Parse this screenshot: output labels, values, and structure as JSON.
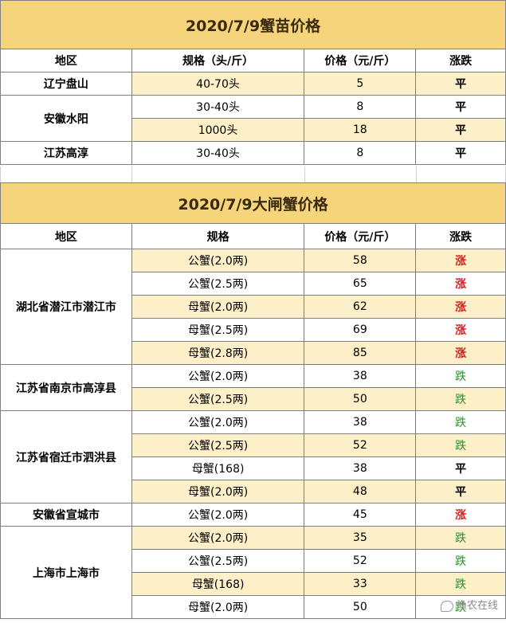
{
  "table1": {
    "title": "2020/7/9蟹苗价格",
    "headers": [
      "地区",
      "规格（头/斤）",
      "价格（元/斤）",
      "涨跌"
    ],
    "groups": [
      {
        "region": "辽宁盘山",
        "rows": [
          {
            "spec": "40-70头",
            "price": "5",
            "trend": "平",
            "dir": "flat"
          }
        ]
      },
      {
        "region": "安徽水阳",
        "rows": [
          {
            "spec": "30-40头",
            "price": "8",
            "trend": "平",
            "dir": "flat"
          },
          {
            "spec": "1000头",
            "price": "18",
            "trend": "平",
            "dir": "flat"
          }
        ]
      },
      {
        "region": "江苏高淳",
        "rows": [
          {
            "spec": "30-40头",
            "price": "8",
            "trend": "平",
            "dir": "flat"
          }
        ]
      }
    ]
  },
  "table2": {
    "title": "2020/7/9大闸蟹价格",
    "headers": [
      "地区",
      "规格",
      "价格（元/斤）",
      "涨跌"
    ],
    "groups": [
      {
        "region": "湖北省潜江市潜江市",
        "rows": [
          {
            "spec": "公蟹(2.0两)",
            "price": "58",
            "trend": "涨",
            "dir": "up"
          },
          {
            "spec": "公蟹(2.5两)",
            "price": "65",
            "trend": "涨",
            "dir": "up"
          },
          {
            "spec": "母蟹(2.0两)",
            "price": "62",
            "trend": "涨",
            "dir": "up"
          },
          {
            "spec": "母蟹(2.5两)",
            "price": "69",
            "trend": "涨",
            "dir": "up"
          },
          {
            "spec": "母蟹(2.8两)",
            "price": "85",
            "trend": "涨",
            "dir": "up"
          }
        ]
      },
      {
        "region": "江苏省南京市高淳县",
        "rows": [
          {
            "spec": "公蟹(2.0两)",
            "price": "38",
            "trend": "跌",
            "dir": "down"
          },
          {
            "spec": "公蟹(2.5两)",
            "price": "50",
            "trend": "跌",
            "dir": "down"
          }
        ]
      },
      {
        "region": "江苏省宿迁市泗洪县",
        "rows": [
          {
            "spec": "公蟹(2.0两)",
            "price": "38",
            "trend": "跌",
            "dir": "down"
          },
          {
            "spec": "公蟹(2.5两)",
            "price": "52",
            "trend": "跌",
            "dir": "down"
          },
          {
            "spec": "母蟹(168)",
            "price": "38",
            "trend": "平",
            "dir": "flat"
          },
          {
            "spec": "母蟹(2.0两)",
            "price": "48",
            "trend": "平",
            "dir": "flat"
          }
        ]
      },
      {
        "region": "安徽省宣城市",
        "rows": [
          {
            "spec": "公蟹(2.0两)",
            "price": "45",
            "trend": "涨",
            "dir": "up"
          }
        ]
      },
      {
        "region": "上海市上海市",
        "rows": [
          {
            "spec": "公蟹(2.0两)",
            "price": "35",
            "trend": "跌",
            "dir": "down"
          },
          {
            "spec": "公蟹(2.5两)",
            "price": "52",
            "trend": "跌",
            "dir": "down"
          },
          {
            "spec": "母蟹(168)",
            "price": "33",
            "trend": "跌",
            "dir": "down"
          },
          {
            "spec": "母蟹(2.0两)",
            "price": "50",
            "trend": "跌",
            "dir": "down"
          }
        ]
      }
    ]
  },
  "watermark": "渔农在线",
  "colors": {
    "title_bg": "#f5d47c",
    "row_highlight": "#fdefc8",
    "up": "#e01818",
    "down": "#2e8b2e"
  }
}
